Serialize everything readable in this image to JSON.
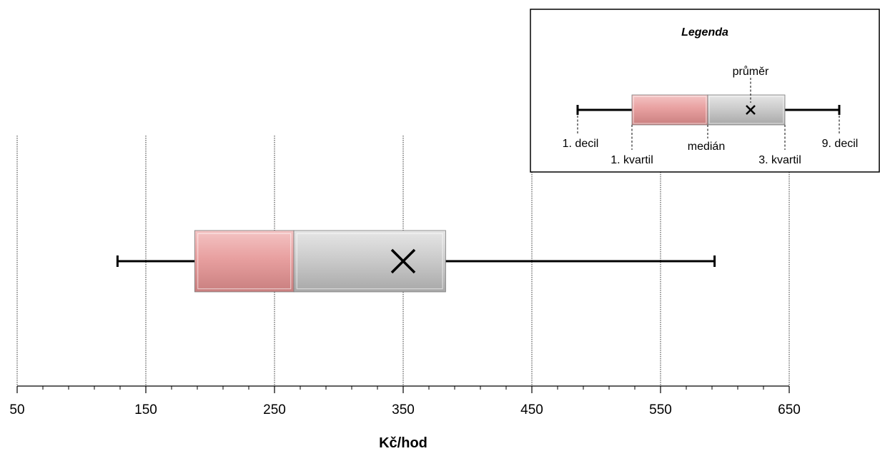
{
  "chart_data": {
    "type": "box",
    "xlabel": "Kč/hod",
    "xlim": [
      50,
      650
    ],
    "major_ticks": [
      50,
      150,
      250,
      350,
      450,
      550,
      650
    ],
    "tick_labels": [
      "50",
      "150",
      "250",
      "350",
      "450",
      "550",
      "650"
    ],
    "minor_tick_step": 20,
    "grid": true,
    "box": {
      "decile_1": 128,
      "quartile_1": 188,
      "median": 265,
      "mean": 350,
      "quartile_3": 383,
      "decile_9": 592
    },
    "colors": {
      "lower_box": "#e8a0a0",
      "upper_box": "#c8c8c8",
      "line": "#000000"
    },
    "legend": {
      "title": "Legenda",
      "placement": "top-right",
      "labels": {
        "mean": "průměr",
        "decile_1": "1. decil",
        "quartile_1": "1. kvartil",
        "median": "medián",
        "quartile_3": "3. kvartil",
        "decile_9": "9. decil"
      }
    }
  }
}
